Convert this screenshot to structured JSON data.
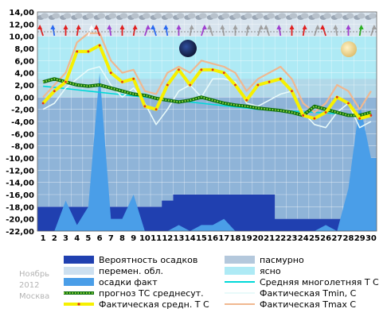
{
  "chart_data": {
    "type": "area",
    "x": [
      1,
      2,
      3,
      4,
      5,
      6,
      7,
      8,
      9,
      10,
      11,
      12,
      13,
      14,
      15,
      16,
      17,
      18,
      19,
      20,
      21,
      22,
      23,
      24,
      25,
      26,
      27,
      28,
      29,
      30
    ],
    "ylim": [
      -22,
      14
    ],
    "yticks": [
      "14,00",
      "12,00",
      "10,00",
      "8,00",
      "6,00",
      "4,00",
      "2,00",
      "0,00",
      "-2,00",
      "-4,00",
      "-6,00",
      "-8,00",
      "-10,00",
      "-12,00",
      "-14,00",
      "-16,00",
      "-18,00",
      "-20,00",
      "-22,00"
    ],
    "series": [
      {
        "name": "Вероятность осадков",
        "color": "#2040b0",
        "values": [
          -18,
          -18,
          -18,
          -18,
          -18,
          -18,
          -18,
          -18,
          -18,
          -18,
          -18,
          -17,
          -16,
          -16,
          -16,
          -16,
          -16,
          -16,
          -16,
          -16,
          -16,
          -20,
          -20,
          -20,
          -20,
          -20,
          -20,
          -20,
          -20,
          -20
        ]
      },
      {
        "name": "пасмурно",
        "color": "#b4c8dc",
        "values": [
          0,
          0,
          0,
          0,
          0,
          0,
          0,
          0,
          0,
          0,
          0,
          0,
          0,
          0,
          0,
          0,
          0,
          0,
          0,
          0,
          0,
          0,
          0,
          0,
          0,
          0,
          0,
          0,
          0,
          0
        ]
      },
      {
        "name": "перемен. обл.",
        "color": "#cde0f0",
        "values": [
          0,
          0,
          0,
          0,
          0,
          0,
          0,
          0,
          0,
          0,
          0,
          0,
          0,
          0,
          0,
          0,
          0,
          0,
          0,
          0,
          0,
          0,
          0,
          0,
          0,
          0,
          0,
          0,
          0,
          0
        ]
      },
      {
        "name": "ясно",
        "color": "#aeeaf5",
        "values": [
          0,
          0,
          0,
          0,
          0,
          0,
          0,
          0,
          0,
          0,
          0,
          0,
          0,
          0,
          0,
          0,
          0,
          0,
          0,
          0,
          0,
          0,
          0,
          0,
          0,
          0,
          0,
          0,
          0,
          0
        ]
      },
      {
        "name": "осадки факт",
        "color": "#4a9ee8",
        "values": [
          -22,
          -22,
          -17,
          -21,
          -18,
          4,
          -20,
          -20,
          -16,
          -22,
          -22,
          -22,
          -21,
          -22,
          -21,
          -21,
          -20,
          -22,
          -22,
          -22,
          -22,
          -22,
          -22,
          -22,
          -22,
          -21,
          -22,
          -15,
          -1,
          -10
        ]
      },
      {
        "name": "Средняя многолетняя Т С",
        "color": "#00d8d8",
        "values": [
          1.8,
          1.6,
          1.4,
          1.2,
          1.0,
          0.8,
          0.6,
          0.4,
          0.2,
          0.0,
          -0.2,
          -0.4,
          -0.6,
          -0.8,
          -1.0,
          -1.2,
          -1.4,
          -1.6,
          -1.8,
          -2.0,
          -2.1,
          -2.2,
          -2.3,
          -2.4,
          -2.5,
          -2.6,
          -2.7,
          -2.8,
          -2.9,
          -3.0
        ]
      },
      {
        "name": "прогноз ТС среднесут.",
        "color": "#107010",
        "values": [
          2.5,
          3.0,
          2.5,
          2.0,
          1.8,
          2.0,
          1.5,
          1.0,
          0.5,
          0.3,
          -0.2,
          -0.5,
          -0.8,
          -0.5,
          0.0,
          -0.5,
          -1.0,
          -1.3,
          -1.5,
          -1.8,
          -2.0,
          -2.2,
          -2.5,
          -3.0,
          -1.5,
          -2.0,
          -2.5,
          -3.0,
          -3.0,
          -2.5
        ]
      },
      {
        "name": "Фактическая Tmin, С",
        "color": "#e8fafa",
        "values": [
          -2.0,
          -1.0,
          1.5,
          3.0,
          4.5,
          5.0,
          2.0,
          0.0,
          1.5,
          -1.0,
          -4.5,
          -2.0,
          1.0,
          2.0,
          0.0,
          3.0,
          3.0,
          2.5,
          -1.0,
          -1.5,
          -0.5,
          0.5,
          1.0,
          -2.5,
          -4.5,
          -5.0,
          -2.5,
          -1.0,
          -5.0,
          -4.0
        ]
      },
      {
        "name": "Фактическая средн. Т С",
        "color": "#f6f000",
        "values": [
          -1.0,
          1.0,
          2.5,
          7.5,
          7.5,
          8.5,
          4.0,
          2.5,
          3.0,
          -1.5,
          -2.0,
          2.0,
          4.5,
          2.0,
          4.5,
          4.5,
          4.0,
          2.0,
          -0.5,
          2.0,
          2.5,
          3.0,
          1.0,
          -3.0,
          -3.5,
          -2.5,
          0.0,
          -1.0,
          -3.5,
          -3.0
        ]
      },
      {
        "name": "Фактическая Tmax C",
        "color": "#f0b890",
        "values": [
          0.0,
          2.0,
          4.0,
          9.0,
          10.5,
          10.5,
          6.0,
          4.0,
          4.5,
          1.0,
          0.5,
          4.0,
          5.0,
          4.0,
          6.0,
          5.5,
          5.0,
          4.0,
          1.0,
          3.0,
          4.0,
          5.0,
          3.0,
          -1.0,
          -2.5,
          -1.0,
          2.0,
          1.0,
          -2.0,
          1.0
        ]
      }
    ],
    "legend_position": "bottom",
    "grid": true
  },
  "top_strip": {
    "wind_colors": [
      "#e02020",
      "#2a6af0",
      "#e02020",
      "#e02020",
      "#ffffff",
      "#e02020",
      "#a040d0",
      "#e02020",
      "#e02020",
      "#a040d0",
      "#2a6af0",
      "#2a6af0",
      "#a040d0",
      "#a0a0a0",
      "#a040d0",
      "#a0a0a0",
      "#a0a0a0",
      "#a0a0a0",
      "#a0a0a0",
      "#a0a0a0",
      "#a0a0a0",
      "#a040d0",
      "#e02020",
      "#e02020",
      "#a0a0a0",
      "#e02020",
      "#a0a0a0",
      "#a040d0",
      "#2ab020",
      "#a0a0a0"
    ]
  },
  "watermark": {
    "month": "Ноябрь",
    "year": "2012",
    "city": "Москва"
  }
}
